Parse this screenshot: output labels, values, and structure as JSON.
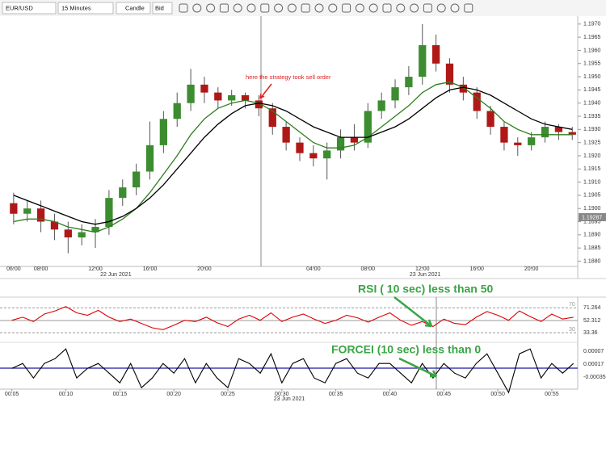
{
  "toolbar": {
    "symbol": "EUR/USD",
    "timeframe": "15 Minutes",
    "chart_type": "Candle",
    "price_side": "Bid"
  },
  "chart_data": [
    {
      "type": "candlestick",
      "annotation": "here the strategy took sell order",
      "crosshair_price": "1.19287",
      "xlim": [
        -1,
        41.4
      ],
      "ylim": [
        1.1878,
        1.1973
      ],
      "xticks": [
        {
          "value": 0,
          "label": "06:00"
        },
        {
          "value": 2,
          "label": "08:00"
        },
        {
          "value": 6,
          "label": "12:00"
        },
        {
          "value": 10,
          "label": "16:00"
        },
        {
          "value": 14,
          "label": "20:00"
        },
        {
          "value": 22,
          "label": "04:00"
        },
        {
          "value": 26,
          "label": "08:00"
        },
        {
          "value": 30,
          "label": "12:00"
        },
        {
          "value": 34,
          "label": "16:00"
        },
        {
          "value": 38,
          "label": "20:00"
        }
      ],
      "date_labels": [
        {
          "value": 7.5,
          "label": "22 Jun 2021"
        },
        {
          "value": 30.2,
          "label": "23 Jun 2021"
        }
      ],
      "yticks": [
        {
          "value": 1.188,
          "label": "1.1880"
        },
        {
          "value": 1.1885,
          "label": "1.1885"
        },
        {
          "value": 1.189,
          "label": "1.1890"
        },
        {
          "value": 1.1895,
          "label": "1.1895"
        },
        {
          "value": 1.19,
          "label": "1.1900"
        },
        {
          "value": 1.1905,
          "label": "1.1905"
        },
        {
          "value": 1.191,
          "label": "1.1910"
        },
        {
          "value": 1.1915,
          "label": "1.1915"
        },
        {
          "value": 1.192,
          "label": "1.1920"
        },
        {
          "value": 1.1925,
          "label": "1.1925"
        },
        {
          "value": 1.193,
          "label": "1.1930"
        },
        {
          "value": 1.1935,
          "label": "1.1935"
        },
        {
          "value": 1.194,
          "label": "1.1940"
        },
        {
          "value": 1.1945,
          "label": "1.1945"
        },
        {
          "value": 1.195,
          "label": "1.1950"
        },
        {
          "value": 1.1955,
          "label": "1.1955"
        },
        {
          "value": 1.196,
          "label": "1.1960"
        },
        {
          "value": 1.1965,
          "label": "1.1965"
        },
        {
          "value": 1.197,
          "label": "1.1970"
        }
      ],
      "up_color": "#3c8d2f",
      "down_color": "#b01818",
      "open": [
        1.1902,
        1.1898,
        1.19,
        1.1895,
        1.1892,
        1.1889,
        1.1891,
        1.1893,
        1.1904,
        1.1908,
        1.1914,
        1.1924,
        1.1934,
        1.194,
        1.1947,
        1.1944,
        1.1941,
        1.1943,
        1.1941,
        1.1938,
        1.1931,
        1.1925,
        1.1921,
        1.1919,
        1.1922,
        1.1927,
        1.1925,
        1.1937,
        1.1941,
        1.1946,
        1.195,
        1.1962,
        1.1955,
        1.1947,
        1.1944,
        1.1937,
        1.1931,
        1.1925,
        1.1924,
        1.1927,
        1.1931,
        1.1929
      ],
      "high": [
        1.1906,
        1.1903,
        1.1903,
        1.1898,
        1.1895,
        1.1894,
        1.1896,
        1.1907,
        1.1911,
        1.1917,
        1.1933,
        1.1937,
        1.1944,
        1.1953,
        1.195,
        1.1946,
        1.1945,
        1.1944,
        1.1943,
        1.194,
        1.1933,
        1.1927,
        1.1924,
        1.1925,
        1.193,
        1.1932,
        1.194,
        1.1944,
        1.1949,
        1.1954,
        1.197,
        1.1966,
        1.1957,
        1.195,
        1.1946,
        1.1939,
        1.1933,
        1.1927,
        1.1929,
        1.1933,
        1.1932,
        1.1931
      ],
      "low": [
        1.1894,
        1.1895,
        1.1891,
        1.1888,
        1.1883,
        1.1886,
        1.1885,
        1.189,
        1.1901,
        1.1905,
        1.1911,
        1.1921,
        1.1931,
        1.1937,
        1.194,
        1.1938,
        1.1939,
        1.1938,
        1.1935,
        1.1928,
        1.1922,
        1.1918,
        1.1916,
        1.1911,
        1.1919,
        1.1922,
        1.1923,
        1.1934,
        1.1938,
        1.1943,
        1.1947,
        1.1952,
        1.1944,
        1.1941,
        1.1934,
        1.1928,
        1.1922,
        1.192,
        1.1922,
        1.1925,
        1.1926,
        1.1926
      ],
      "close": [
        1.1898,
        1.19,
        1.1895,
        1.1892,
        1.1889,
        1.1891,
        1.1893,
        1.1904,
        1.1908,
        1.1914,
        1.1924,
        1.1934,
        1.194,
        1.1947,
        1.1944,
        1.1941,
        1.1943,
        1.1941,
        1.1938,
        1.1931,
        1.1925,
        1.1921,
        1.1919,
        1.1922,
        1.1927,
        1.1925,
        1.1937,
        1.1941,
        1.1946,
        1.195,
        1.1962,
        1.1955,
        1.1947,
        1.1944,
        1.1937,
        1.1931,
        1.1925,
        1.1924,
        1.1927,
        1.1931,
        1.1929,
        1.1928
      ],
      "series": [
        {
          "color": "#2e7d1e",
          "values": [
            1.1895,
            1.1896,
            1.1896,
            1.1895,
            1.1893,
            1.1892,
            1.1891,
            1.1893,
            1.1896,
            1.19,
            1.1906,
            1.1913,
            1.192,
            1.1928,
            1.1934,
            1.1938,
            1.194,
            1.1941,
            1.194,
            1.1937,
            1.1933,
            1.1929,
            1.1925,
            1.1923,
            1.1923,
            1.1924,
            1.1927,
            1.1931,
            1.1935,
            1.1939,
            1.1944,
            1.1947,
            1.1948,
            1.1946,
            1.1942,
            1.1938,
            1.1933,
            1.193,
            1.1928,
            1.1928,
            1.1928,
            1.1928
          ]
        },
        {
          "color": "#000000",
          "values": [
            1.1905,
            1.1903,
            1.1901,
            1.1899,
            1.1897,
            1.1895,
            1.1894,
            1.1895,
            1.1897,
            1.19,
            1.1904,
            1.1909,
            1.1915,
            1.1921,
            1.1927,
            1.1932,
            1.1936,
            1.1939,
            1.194,
            1.1939,
            1.1937,
            1.1934,
            1.1931,
            1.1929,
            1.1927,
            1.1927,
            1.1927,
            1.1929,
            1.1931,
            1.1934,
            1.1938,
            1.1942,
            1.1945,
            1.1946,
            1.1945,
            1.1943,
            1.194,
            1.1937,
            1.1934,
            1.1932,
            1.1931,
            1.193
          ]
        }
      ]
    },
    {
      "type": "line",
      "annotation": "RSI ( 10 sec) less than 50",
      "readouts": [
        "71.264",
        "52.312",
        "33.36"
      ],
      "xlim": [
        3.9,
        57.4
      ],
      "ylim": [
        16,
        82
      ],
      "yticks": [
        30,
        70
      ],
      "xticks": [
        {
          "value": 5,
          "label": "00:05"
        },
        {
          "value": 10,
          "label": "00:10"
        },
        {
          "value": 15,
          "label": "00:15"
        },
        {
          "value": 20,
          "label": "00:20"
        },
        {
          "value": 25,
          "label": "00:25"
        },
        {
          "value": 30,
          "label": "00:30"
        },
        {
          "value": 35,
          "label": "00:35"
        },
        {
          "value": 40,
          "label": "00:40"
        },
        {
          "value": 45,
          "label": "00:45"
        },
        {
          "value": 50,
          "label": "00:50"
        },
        {
          "value": 55,
          "label": "00:55"
        }
      ],
      "x": [
        5,
        6,
        7,
        8,
        9,
        10,
        11,
        12,
        13,
        14,
        15,
        16,
        17,
        18,
        19,
        20,
        21,
        22,
        23,
        24,
        25,
        26,
        27,
        28,
        29,
        30,
        31,
        32,
        33,
        34,
        35,
        36,
        37,
        38,
        39,
        40,
        41,
        42,
        43,
        44,
        45,
        46,
        47,
        48,
        49,
        50,
        51,
        52,
        53,
        54,
        55,
        56,
        57
      ],
      "series": [
        {
          "color": "#e00000",
          "values": [
            50,
            55,
            48,
            60,
            65,
            72,
            62,
            58,
            66,
            55,
            48,
            52,
            45,
            38,
            35,
            42,
            50,
            48,
            55,
            46,
            40,
            52,
            58,
            50,
            62,
            48,
            55,
            60,
            52,
            45,
            50,
            58,
            54,
            47,
            55,
            62,
            50,
            42,
            48,
            40,
            52,
            45,
            43,
            55,
            64,
            58,
            50,
            65,
            56,
            48,
            60,
            52,
            55
          ]
        }
      ]
    },
    {
      "type": "line",
      "annotation": "FORCEI (10 sec) less than 0",
      "readouts": [
        "0.00007",
        "0.00017",
        "-0.00035"
      ],
      "date_label": "23 Jun 2021",
      "xlim": [
        3.9,
        57.4
      ],
      "ylim": [
        -4.3e-05,
        4.7e-05
      ],
      "x": [
        5,
        6,
        7,
        8,
        9,
        10,
        11,
        12,
        13,
        14,
        15,
        16,
        17,
        18,
        19,
        20,
        21,
        22,
        23,
        24,
        25,
        26,
        27,
        28,
        29,
        30,
        31,
        32,
        33,
        34,
        35,
        36,
        37,
        38,
        39,
        40,
        41,
        42,
        43,
        44,
        45,
        46,
        47,
        48,
        49,
        50,
        51,
        52,
        53,
        54,
        55,
        56,
        57
      ],
      "series": [
        {
          "color": "#000000",
          "values": [
            0,
            1e-05,
            -2e-05,
            1e-05,
            2e-05,
            4e-05,
            -2e-05,
            0,
            1e-05,
            -1e-05,
            -3e-05,
            1e-05,
            -4e-05,
            -2e-05,
            1e-05,
            -1e-05,
            2e-05,
            -3e-05,
            1e-05,
            -2e-05,
            -4e-05,
            2e-05,
            1e-05,
            -1e-05,
            3e-05,
            -3e-05,
            1e-05,
            2e-05,
            -2e-05,
            -3e-05,
            1e-05,
            2e-05,
            -1e-05,
            -2e-05,
            1e-05,
            1e-05,
            -1e-05,
            -3e-05,
            1e-05,
            -2e-05,
            1e-05,
            -1e-05,
            -2e-05,
            1e-05,
            3e-05,
            -1e-05,
            -5e-05,
            3e-05,
            4e-05,
            -2e-05,
            1e-05,
            -1e-05,
            1e-05
          ]
        }
      ]
    }
  ]
}
